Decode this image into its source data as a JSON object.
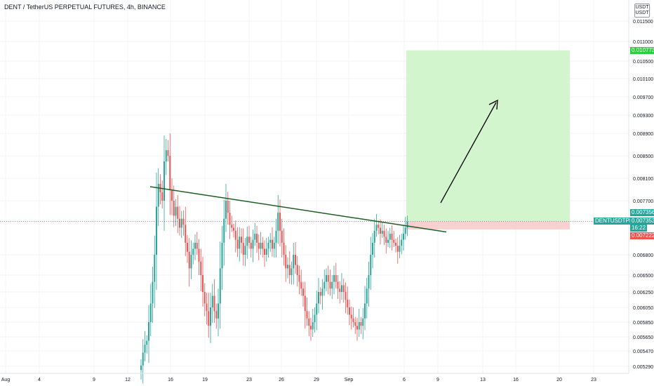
{
  "header": {
    "title": "DENT / TetherUS PERPETUAL FUTURES, 4h, BINANCE",
    "currency_line1": "USDT",
    "currency_line2": "USDT"
  },
  "price_tags": {
    "target": "0.010773",
    "ticker": "DENTUSDTPERP",
    "last": "0.007356",
    "close": "0.007353",
    "countdown": "16:22",
    "stop": "0.007222"
  },
  "colors": {
    "up": "#26a69a",
    "down": "#ef5350",
    "profit_zone": "#d3f5cd",
    "loss_zone": "#f8d0d0",
    "trendline": "#1b5e20",
    "target_tag": "#2ecc40",
    "ticker_tag": "#26a69a",
    "stop_tag": "#ef5350",
    "arrow": "#000000"
  },
  "chart_data": {
    "type": "candlestick",
    "title": "DENT / TetherUS PERPETUAL FUTURES, 4h, BINANCE",
    "y_axis_ticks": [
      "0.011500",
      "0.011000",
      "0.010500",
      "0.010100",
      "0.009700",
      "0.009300",
      "0.008900",
      "0.008500",
      "0.008100",
      "0.007700",
      "0.006800",
      "0.006500",
      "0.006250",
      "0.006050",
      "0.005850",
      "0.005650",
      "0.005470",
      "0.005290"
    ],
    "x_axis_ticks": [
      "Aug",
      "4",
      "9",
      "12",
      "16",
      "19",
      "23",
      "26",
      "29",
      "Sep",
      "6",
      "9",
      "13",
      "16",
      "20",
      "23"
    ],
    "ylim": [
      0.0052,
      0.0119
    ],
    "close_series": [
      0.0053,
      0.00545,
      0.00555,
      0.0056,
      0.00585,
      0.0061,
      0.0064,
      0.0068,
      0.0076,
      0.008,
      0.00785,
      0.0077,
      0.0084,
      0.0086,
      0.0085,
      0.0079,
      0.0077,
      0.00745,
      0.0076,
      0.0074,
      0.00725,
      0.0074,
      0.0073,
      0.007,
      0.00685,
      0.0066,
      0.0068,
      0.0069,
      0.007,
      0.0069,
      0.0067,
      0.0065,
      0.00625,
      0.0061,
      0.006,
      0.0058,
      0.00605,
      0.0062,
      0.006,
      0.0059,
      0.0061,
      0.0066,
      0.007,
      0.0074,
      0.0077,
      0.0075,
      0.0073,
      0.00725,
      0.0072,
      0.00705,
      0.0069,
      0.0071,
      0.007,
      0.0068,
      0.00695,
      0.0071,
      0.007,
      0.0069,
      0.00705,
      0.00715,
      0.007,
      0.0069,
      0.007,
      0.0069,
      0.0068,
      0.0069,
      0.007,
      0.00705,
      0.0069,
      0.007,
      0.0072,
      0.0075,
      0.0072,
      0.007,
      0.0068,
      0.0066,
      0.00665,
      0.0065,
      0.0066,
      0.0068,
      0.00665,
      0.0065,
      0.0064,
      0.0063,
      0.0062,
      0.006,
      0.0059,
      0.0058,
      0.00575,
      0.00585,
      0.00595,
      0.0061,
      0.00625,
      0.0062,
      0.0063,
      0.0064,
      0.0065,
      0.0064,
      0.0063,
      0.0064,
      0.0065,
      0.0064,
      0.0063,
      0.00625,
      0.00635,
      0.00625,
      0.00615,
      0.00605,
      0.00595,
      0.0059,
      0.00585,
      0.0058,
      0.00575,
      0.00585,
      0.0058,
      0.0059,
      0.0061,
      0.0063,
      0.0065,
      0.0068,
      0.007,
      0.0072,
      0.0073,
      0.00725,
      0.00715,
      0.0072,
      0.0071,
      0.007,
      0.00705,
      0.00715,
      0.00705,
      0.007,
      0.00695,
      0.00685,
      0.00695,
      0.00705,
      0.00715,
      0.00725,
      0.00735
    ],
    "trendline": {
      "start": {
        "x": "Aug 13",
        "y": 0.00795
      },
      "end": {
        "x": "Sep 10",
        "y": 0.00718
      }
    },
    "long_position": {
      "entry": 0.007356,
      "target": 0.010773,
      "stop": 0.007222
    },
    "grid": true
  }
}
